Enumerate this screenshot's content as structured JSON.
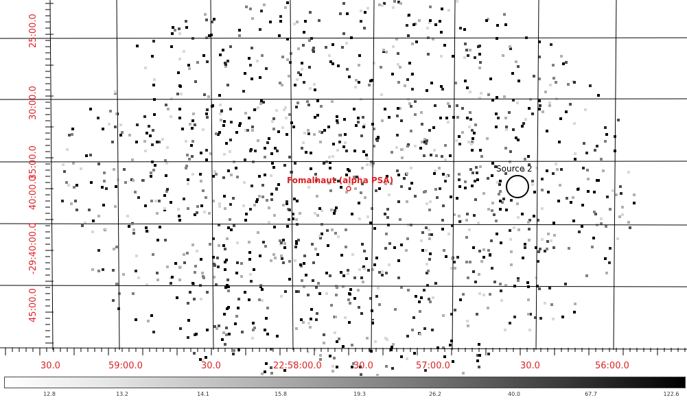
{
  "image_view": {
    "ra_axis_labels": [
      "30.0",
      "59:00.0",
      "30.0",
      "22:58:00.0",
      "30.0",
      "57:00.0",
      "30.0",
      "56:00.0"
    ],
    "dec_axis_labels": [
      "25:00.0",
      "30:00.0",
      "35:00.0",
      "40:00.0",
      "-29:40:00.0",
      "45:00.0"
    ],
    "target_marker": {
      "label": "Fomalhaut (alpha PSA)",
      "color": "#dd1f1f"
    },
    "source_region": {
      "label": "Source 2",
      "color": "#000000"
    },
    "axis_label_color": "#dd2222",
    "grid_color": "#000000"
  },
  "colorbar": {
    "scale_labels": [
      "12.8",
      "13.2",
      "14.1",
      "15.8",
      "19.3",
      "26.2",
      "40.0",
      "67.7",
      "122.6"
    ],
    "colormap": "grey-inverted"
  }
}
